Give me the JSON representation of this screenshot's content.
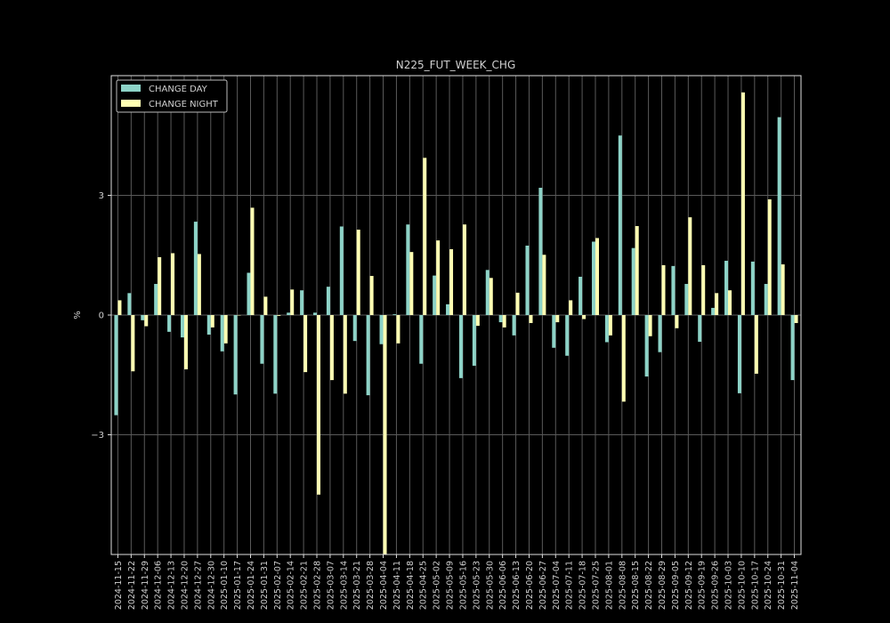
{
  "chart_data": {
    "type": "bar",
    "title": "N225_FUT_WEEK_CHG",
    "xlabel": "",
    "ylabel": "%",
    "ylim": [
      -6.0,
      6.0
    ],
    "yticks": [
      3,
      0,
      -3
    ],
    "ytick_labels": [
      "3",
      "0",
      "−3"
    ],
    "grid": true,
    "legend_position": "top-left",
    "categories": [
      "2024-11-15",
      "2024-11-22",
      "2024-11-29",
      "2024-12-06",
      "2024-12-13",
      "2024-12-20",
      "2024-12-27",
      "2024-12-30",
      "2025-01-10",
      "2025-01-17",
      "2025-01-24",
      "2025-01-31",
      "2025-02-07",
      "2025-02-14",
      "2025-02-21",
      "2025-02-28",
      "2025-03-07",
      "2025-03-14",
      "2025-03-21",
      "2025-03-28",
      "2025-04-04",
      "2025-04-11",
      "2025-04-18",
      "2025-04-25",
      "2025-05-02",
      "2025-05-09",
      "2025-05-16",
      "2025-05-23",
      "2025-05-30",
      "2025-06-06",
      "2025-06-13",
      "2025-06-20",
      "2025-06-27",
      "2025-07-04",
      "2025-07-11",
      "2025-07-18",
      "2025-07-25",
      "2025-08-01",
      "2025-08-08",
      "2025-08-15",
      "2025-08-22",
      "2025-08-29",
      "2025-09-05",
      "2025-09-12",
      "2025-09-19",
      "2025-09-26",
      "2025-10-03",
      "2025-10-10",
      "2025-10-17",
      "2025-10-24",
      "2025-10-31",
      "2025-11-04"
    ],
    "series": [
      {
        "name": "CHANGE DAY",
        "color": "#8dd3c7",
        "values": [
          -2.51,
          0.55,
          -0.13,
          0.78,
          -0.42,
          -0.56,
          2.34,
          -0.49,
          -0.91,
          -1.99,
          1.06,
          -1.22,
          -1.97,
          0.06,
          0.62,
          0.06,
          0.71,
          2.22,
          -0.65,
          -2.01,
          -0.73,
          0.02,
          2.27,
          -1.22,
          0.99,
          0.27,
          -1.58,
          -1.27,
          1.13,
          -0.18,
          -0.51,
          1.74,
          3.19,
          -0.82,
          -1.02,
          0.96,
          1.84,
          -0.68,
          4.5,
          1.68,
          -1.54,
          -0.93,
          1.23,
          0.78,
          -0.67,
          0.18,
          1.36,
          -1.96,
          1.34,
          0.78,
          4.96,
          -1.63
        ]
      },
      {
        "name": "CHANGE NIGHT",
        "color": "#ffffb3",
        "values": [
          0.37,
          -1.41,
          -0.28,
          1.45,
          1.55,
          -1.36,
          1.53,
          -0.31,
          -0.71,
          0.0,
          2.69,
          0.46,
          -0.02,
          0.64,
          -1.43,
          -4.5,
          -1.63,
          -1.97,
          2.14,
          0.98,
          -6.1,
          -0.71,
          1.58,
          3.94,
          1.87,
          1.65,
          2.27,
          -0.27,
          0.93,
          -0.31,
          0.56,
          -0.2,
          1.51,
          -0.18,
          0.37,
          -0.1,
          1.93,
          -0.51,
          -2.17,
          2.23,
          -0.53,
          1.25,
          -0.33,
          2.45,
          1.25,
          0.55,
          0.62,
          5.58,
          -1.47,
          2.9,
          1.27,
          -0.2
        ]
      }
    ]
  }
}
